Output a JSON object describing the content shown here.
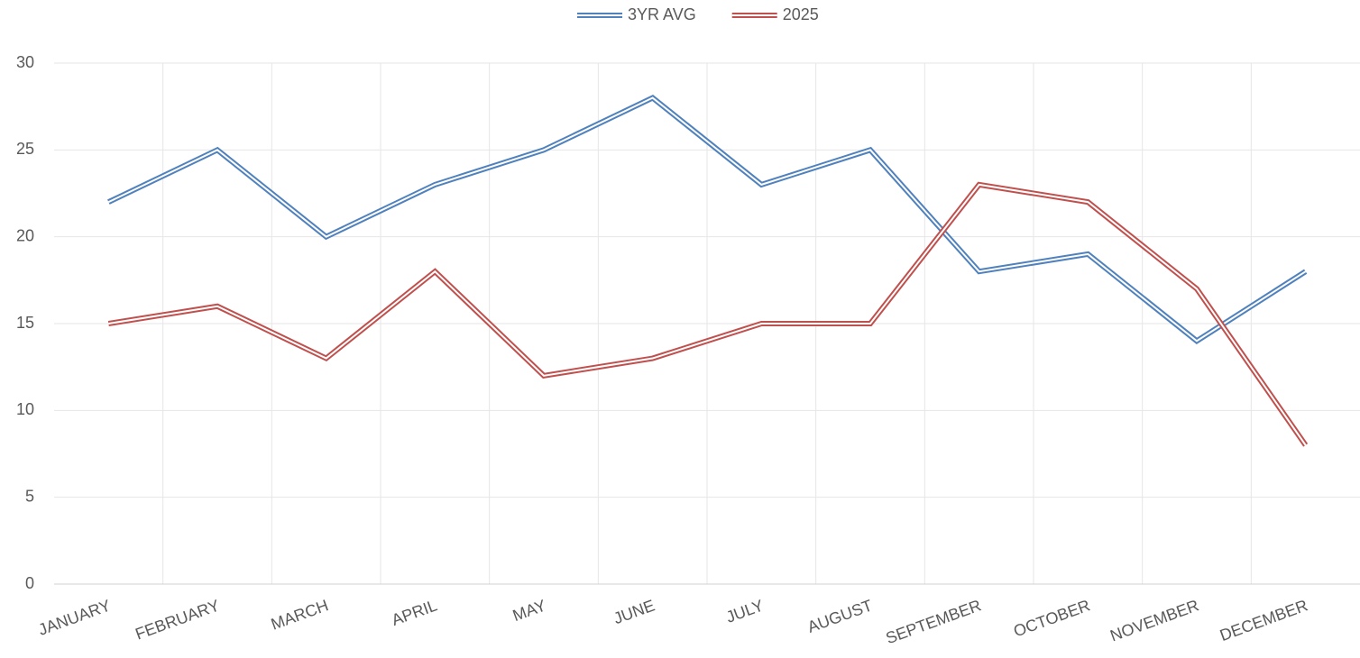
{
  "chart_data": {
    "type": "line",
    "categories": [
      "JANUARY",
      "FEBRUARY",
      "MARCH",
      "APRIL",
      "MAY",
      "JUNE",
      "JULY",
      "AUGUST",
      "SEPTEMBER",
      "OCTOBER",
      "NOVEMBER",
      "DECEMBER"
    ],
    "series": [
      {
        "name": "3YR AVG",
        "color": "#4f81bd",
        "values": [
          22,
          25,
          20,
          23,
          25,
          28,
          23,
          25,
          18,
          19,
          14,
          18
        ]
      },
      {
        "name": "2025",
        "color": "#c0504d",
        "values": [
          15,
          16,
          13,
          18,
          12,
          13,
          15,
          15,
          23,
          22,
          17,
          8
        ]
      }
    ],
    "ylim": [
      0,
      30
    ],
    "yticks": [
      0,
      5,
      10,
      15,
      20,
      25,
      30
    ],
    "grid": true,
    "legend": "top"
  }
}
